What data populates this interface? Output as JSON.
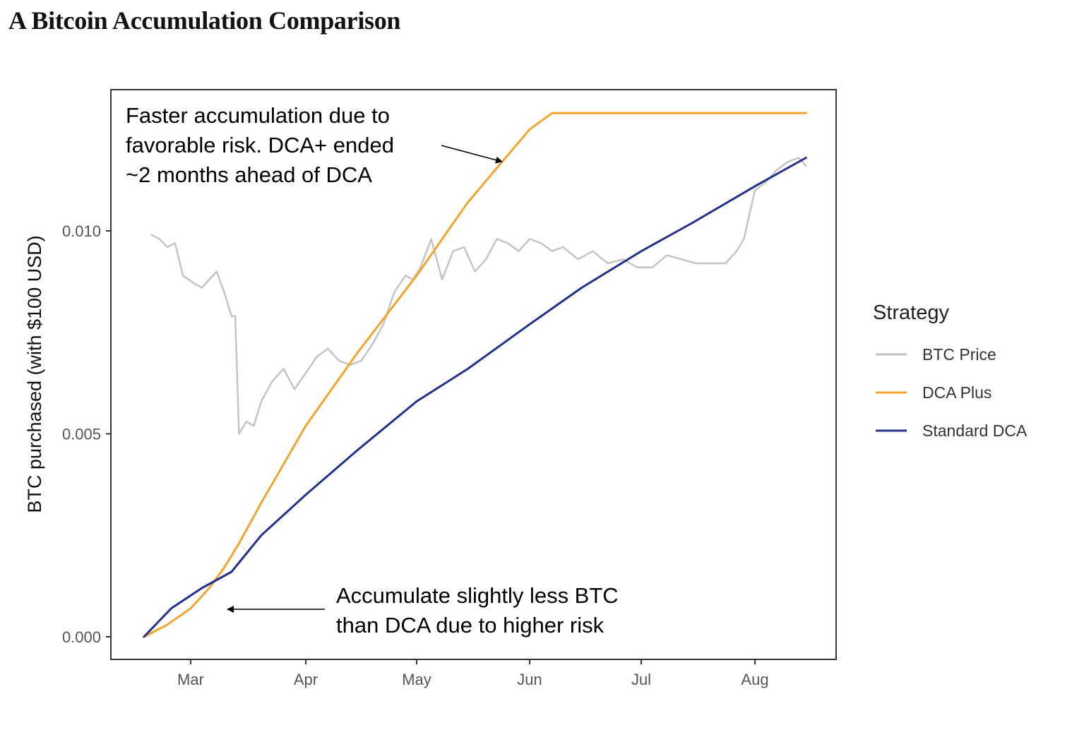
{
  "title": "A Bitcoin Accumulation Comparison",
  "chart_data": {
    "type": "line",
    "title": "A Bitcoin Accumulation Comparison",
    "xlabel": "",
    "ylabel": "BTC purchased (with $100 USD)",
    "x_ticks": [
      "Mar",
      "Apr",
      "May",
      "Jun",
      "Jul",
      "Aug"
    ],
    "y_ticks": [
      "0.000",
      "0.005",
      "0.010"
    ],
    "ylim": [
      -0.0005,
      0.0135
    ],
    "grid": false,
    "legend": {
      "title": "Strategy",
      "position": "right",
      "entries": [
        "BTC Price",
        "DCA Plus",
        "Standard DCA"
      ]
    },
    "colors": {
      "BTC Price": "#c4c4c4",
      "DCA Plus": "#f2a52d",
      "Standard DCA": "#22318a"
    },
    "series": [
      {
        "name": "BTC Price",
        "x": [
          "Feb 20",
          "Feb 22",
          "Feb 24",
          "Feb 26",
          "Feb 28",
          "Mar 2",
          "Mar 4",
          "Mar 6",
          "Mar 8",
          "Mar 10",
          "Mar 12",
          "Mar 13",
          "Mar 14",
          "Mar 16",
          "Mar 18",
          "Mar 20",
          "Mar 23",
          "Mar 26",
          "Mar 29",
          "Apr 1",
          "Apr 4",
          "Apr 7",
          "Apr 10",
          "Apr 13",
          "Apr 16",
          "Apr 19",
          "Apr 22",
          "Apr 25",
          "Apr 28",
          "Apr 30",
          "May 2",
          "May 5",
          "May 8",
          "May 11",
          "May 14",
          "May 17",
          "May 20",
          "May 23",
          "May 26",
          "May 29",
          "Jun 1",
          "Jun 4",
          "Jun 7",
          "Jun 10",
          "Jun 14",
          "Jun 18",
          "Jun 22",
          "Jun 26",
          "Jun 30",
          "Jul 4",
          "Jul 8",
          "Jul 12",
          "Jul 16",
          "Jul 20",
          "Jul 24",
          "Jul 27",
          "Jul 29",
          "Aug 1",
          "Aug 4",
          "Aug 7",
          "Aug 10",
          "Aug 13",
          "Aug 15"
        ],
        "values": [
          0.0099,
          0.0098,
          0.0096,
          0.0097,
          0.0089,
          0.0087,
          0.0086,
          0.0088,
          0.009,
          0.0085,
          0.0079,
          0.0079,
          0.005,
          0.0053,
          0.0052,
          0.0058,
          0.0063,
          0.0066,
          0.0061,
          0.0065,
          0.0069,
          0.0071,
          0.0068,
          0.0067,
          0.0068,
          0.0072,
          0.0077,
          0.0085,
          0.0089,
          0.0088,
          0.0091,
          0.0098,
          0.0088,
          0.0095,
          0.0096,
          0.009,
          0.0093,
          0.0098,
          0.0097,
          0.0095,
          0.0098,
          0.0097,
          0.0095,
          0.0096,
          0.0093,
          0.0095,
          0.0092,
          0.0093,
          0.0091,
          0.0091,
          0.0094,
          0.0093,
          0.0092,
          0.0092,
          0.0092,
          0.0095,
          0.0098,
          0.011,
          0.0112,
          0.0115,
          0.0117,
          0.0118,
          0.0116
        ]
      },
      {
        "name": "DCA Plus",
        "x": [
          "Feb 18",
          "Feb 24",
          "Mar 1",
          "Mar 6",
          "Mar 10",
          "Mar 14",
          "Mar 20",
          "Apr 1",
          "Apr 15",
          "May 1",
          "May 15",
          "Jun 1",
          "Jun 7",
          "Jun 20",
          "Jul 1",
          "Jul 15",
          "Aug 1",
          "Aug 15"
        ],
        "values": [
          0.0,
          0.0003,
          0.0007,
          0.0012,
          0.0017,
          0.0023,
          0.0033,
          0.0052,
          0.007,
          0.0089,
          0.0107,
          0.0125,
          0.0129,
          0.0129,
          0.0129,
          0.0129,
          0.0129,
          0.0129
        ]
      },
      {
        "name": "Standard DCA",
        "x": [
          "Feb 18",
          "Feb 25",
          "Mar 4",
          "Mar 12",
          "Mar 20",
          "Apr 1",
          "Apr 15",
          "May 1",
          "May 15",
          "Jun 1",
          "Jun 15",
          "Jul 1",
          "Jul 15",
          "Aug 1",
          "Aug 15"
        ],
        "values": [
          0.0,
          0.0007,
          0.0012,
          0.0016,
          0.0025,
          0.0035,
          0.0046,
          0.0058,
          0.0066,
          0.0077,
          0.0086,
          0.0095,
          0.0102,
          0.0111,
          0.0118
        ]
      }
    ],
    "annotations": [
      {
        "lines": [
          "Faster accumulation due to",
          "favorable risk. DCA+ ended",
          "~2 months ahead of DCA"
        ],
        "target_series": "DCA Plus"
      },
      {
        "lines": [
          "Accumulate slightly less BTC",
          "than DCA due to higher risk"
        ],
        "target_series": "DCA Plus"
      }
    ]
  }
}
